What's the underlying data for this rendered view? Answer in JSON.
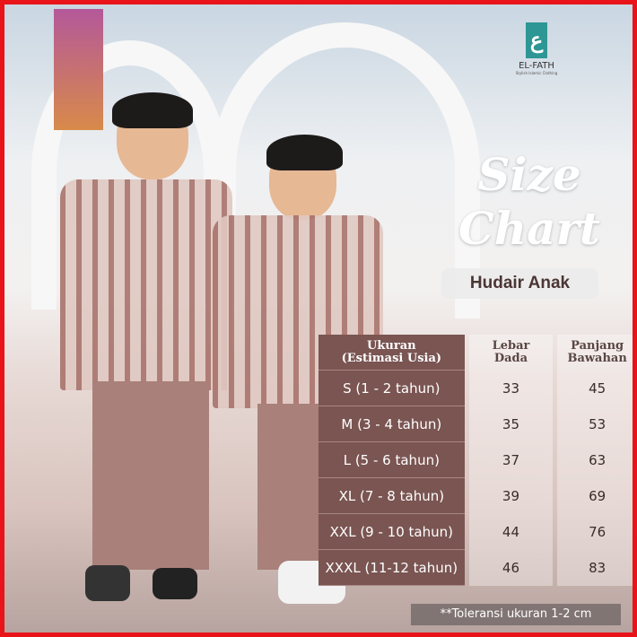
{
  "brand": {
    "name": "EL-FATH",
    "tagline": "Stylish Islamic Clothing",
    "logo_color": "#2e9694"
  },
  "title_line1": "Size",
  "title_line2": "Chart",
  "product": "Hudair Anak",
  "table": {
    "headers": [
      "Ukuran (Estimasi Usia)",
      "Lebar Dada",
      "Panjang Bawahan"
    ],
    "header_lines": [
      [
        "Ukuran",
        "(Estimasi Usia)"
      ],
      [
        "Lebar",
        "Dada"
      ],
      [
        "Panjang",
        "Bawahan"
      ]
    ],
    "rows": [
      [
        "S  (1 - 2 tahun)",
        "33",
        "45"
      ],
      [
        "M (3 - 4 tahun)",
        "35",
        "53"
      ],
      [
        "L (5 - 6 tahun)",
        "37",
        "63"
      ],
      [
        "XL (7 - 8 tahun)",
        "39",
        "69"
      ],
      [
        "XXL (9 - 10 tahun)",
        "44",
        "76"
      ],
      [
        "XXXL (11-12 tahun)",
        "46",
        "83"
      ]
    ]
  },
  "note": "**Toleransi ukuran 1-2 cm",
  "colors": {
    "frame": "#e8141a",
    "table_label": "#7a5552"
  }
}
